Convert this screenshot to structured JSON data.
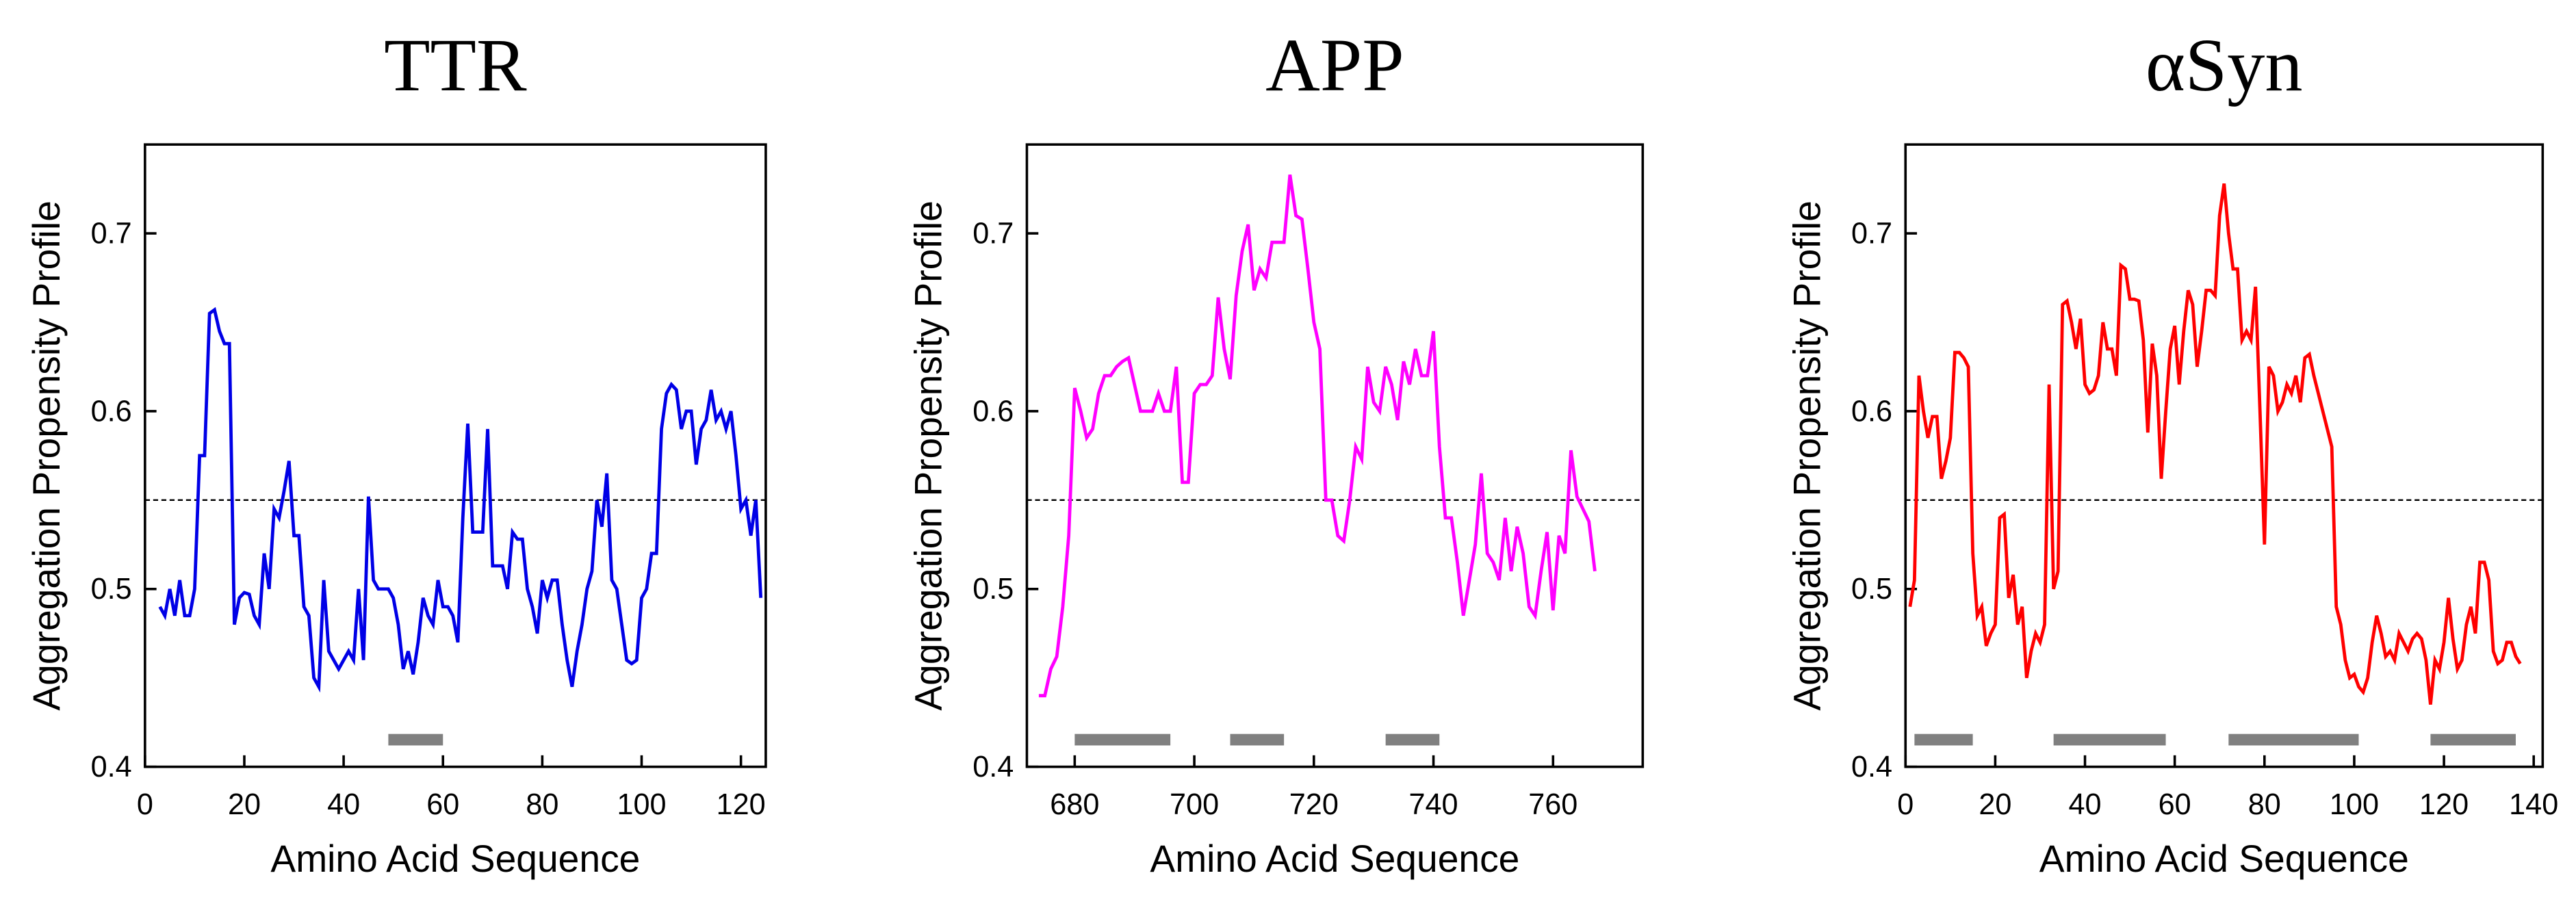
{
  "chart_data": [
    {
      "type": "line",
      "title": "TTR",
      "xlabel": "Amino Acid Sequence",
      "ylabel": "Aggregation Propensity Profile",
      "xlim": [
        0,
        125
      ],
      "xticks": [
        0,
        20,
        40,
        60,
        80,
        100,
        120
      ],
      "ylim": [
        0.4,
        0.75
      ],
      "yticks": [
        0.4,
        0.5,
        0.6,
        0.7
      ],
      "threshold": 0.55,
      "regions": [
        [
          49,
          60
        ]
      ],
      "region_color": "#808080",
      "color": "#0000e6",
      "x": [
        3,
        4,
        5,
        6,
        7,
        8,
        9,
        10,
        11,
        12,
        13,
        14,
        15,
        16,
        17,
        18,
        19,
        20,
        21,
        22,
        23,
        24,
        25,
        26,
        27,
        28,
        29,
        30,
        31,
        32,
        33,
        34,
        35,
        36,
        37,
        38,
        39,
        40,
        41,
        42,
        43,
        44,
        45,
        46,
        47,
        48,
        49,
        50,
        51,
        52,
        53,
        54,
        55,
        56,
        57,
        58,
        59,
        60,
        61,
        62,
        63,
        64,
        65,
        66,
        67,
        68,
        69,
        70,
        71,
        72,
        73,
        74,
        75,
        76,
        77,
        78,
        79,
        80,
        81,
        82,
        83,
        84,
        85,
        86,
        87,
        88,
        89,
        90,
        91,
        92,
        93,
        94,
        95,
        96,
        97,
        98,
        99,
        100,
        101,
        102,
        103,
        104,
        105,
        106,
        107,
        108,
        109,
        110,
        111,
        112,
        113,
        114,
        115,
        116,
        117,
        118,
        119,
        120,
        121,
        122,
        123,
        124
      ],
      "values": [
        0.49,
        0.485,
        0.5,
        0.485,
        0.505,
        0.485,
        0.485,
        0.5,
        0.575,
        0.575,
        0.655,
        0.657,
        0.645,
        0.638,
        0.638,
        0.48,
        0.495,
        0.498,
        0.497,
        0.485,
        0.48,
        0.52,
        0.5,
        0.545,
        0.54,
        0.555,
        0.572,
        0.53,
        0.53,
        0.49,
        0.485,
        0.45,
        0.445,
        0.505,
        0.465,
        0.46,
        0.455,
        0.46,
        0.465,
        0.46,
        0.5,
        0.46,
        0.552,
        0.505,
        0.5,
        0.5,
        0.5,
        0.495,
        0.48,
        0.455,
        0.465,
        0.452,
        0.47,
        0.495,
        0.485,
        0.48,
        0.505,
        0.49,
        0.49,
        0.485,
        0.47,
        0.54,
        0.593,
        0.532,
        0.532,
        0.532,
        0.59,
        0.513,
        0.513,
        0.513,
        0.5,
        0.532,
        0.528,
        0.528,
        0.5,
        0.49,
        0.475,
        0.505,
        0.495,
        0.505,
        0.505,
        0.48,
        0.46,
        0.445,
        0.465,
        0.48,
        0.5,
        0.51,
        0.55,
        0.535,
        0.565,
        0.505,
        0.5,
        0.48,
        0.46,
        0.458,
        0.46,
        0.495,
        0.5,
        0.52,
        0.52,
        0.59,
        0.61,
        0.615,
        0.612,
        0.59,
        0.6,
        0.6,
        0.57,
        0.59,
        0.595,
        0.612,
        0.595,
        0.6,
        0.59,
        0.6,
        0.575,
        0.545,
        0.55,
        0.53,
        0.55,
        0.495
      ]
    },
    {
      "type": "line",
      "title": "APP",
      "xlabel": "Amino Acid Sequence",
      "ylabel": "Aggregation Propensity Profile",
      "xlim": [
        672,
        775
      ],
      "xticks": [
        680,
        700,
        720,
        740,
        760
      ],
      "ylim": [
        0.4,
        0.75
      ],
      "yticks": [
        0.4,
        0.5,
        0.6,
        0.7
      ],
      "threshold": 0.55,
      "regions": [
        [
          680,
          696
        ],
        [
          706,
          715
        ],
        [
          732,
          741
        ]
      ],
      "region_color": "#808080",
      "color": "#ff00ff",
      "x": [
        674,
        675,
        676,
        677,
        678,
        679,
        680,
        681,
        682,
        683,
        684,
        685,
        686,
        687,
        688,
        689,
        690,
        691,
        692,
        693,
        694,
        695,
        696,
        697,
        698,
        699,
        700,
        701,
        702,
        703,
        704,
        705,
        706,
        707,
        708,
        709,
        710,
        711,
        712,
        713,
        714,
        715,
        716,
        717,
        718,
        719,
        720,
        721,
        722,
        723,
        724,
        725,
        726,
        727,
        728,
        729,
        730,
        731,
        732,
        733,
        734,
        735,
        736,
        737,
        738,
        739,
        740,
        741,
        742,
        743,
        744,
        745,
        746,
        747,
        748,
        749,
        750,
        751,
        752,
        753,
        754,
        755,
        756,
        757,
        758,
        759,
        760,
        761,
        762,
        763,
        764,
        765,
        766,
        767
      ],
      "values": [
        0.44,
        0.44,
        0.455,
        0.462,
        0.49,
        0.53,
        0.613,
        0.6,
        0.585,
        0.59,
        0.61,
        0.62,
        0.62,
        0.625,
        0.628,
        0.63,
        0.615,
        0.6,
        0.6,
        0.6,
        0.61,
        0.6,
        0.6,
        0.625,
        0.56,
        0.56,
        0.61,
        0.615,
        0.615,
        0.62,
        0.664,
        0.635,
        0.618,
        0.665,
        0.69,
        0.705,
        0.668,
        0.68,
        0.675,
        0.695,
        0.695,
        0.695,
        0.733,
        0.71,
        0.708,
        0.68,
        0.65,
        0.635,
        0.55,
        0.55,
        0.53,
        0.527,
        0.55,
        0.58,
        0.573,
        0.625,
        0.605,
        0.6,
        0.625,
        0.615,
        0.595,
        0.628,
        0.615,
        0.635,
        0.62,
        0.62,
        0.645,
        0.58,
        0.54,
        0.54,
        0.515,
        0.485,
        0.505,
        0.525,
        0.565,
        0.52,
        0.515,
        0.505,
        0.54,
        0.51,
        0.535,
        0.52,
        0.49,
        0.485,
        0.51,
        0.532,
        0.488,
        0.53,
        0.52,
        0.578,
        0.552,
        0.545,
        0.538,
        0.51
      ]
    },
    {
      "type": "line",
      "title": "αSyn",
      "xlabel": "Amino Acid Sequence",
      "ylabel": "Aggregation Propensity Profile",
      "xlim": [
        0,
        142
      ],
      "xticks": [
        0,
        20,
        40,
        60,
        80,
        100,
        120,
        140
      ],
      "ylim": [
        0.4,
        0.75
      ],
      "yticks": [
        0.4,
        0.5,
        0.6,
        0.7
      ],
      "threshold": 0.55,
      "regions": [
        [
          2,
          15
        ],
        [
          33,
          58
        ],
        [
          72,
          101
        ],
        [
          117,
          136
        ]
      ],
      "region_color": "#808080",
      "color": "#ff0000",
      "x": [
        1,
        2,
        3,
        4,
        5,
        6,
        7,
        8,
        9,
        10,
        11,
        12,
        13,
        14,
        15,
        16,
        17,
        18,
        19,
        20,
        21,
        22,
        23,
        24,
        25,
        26,
        27,
        28,
        29,
        30,
        31,
        32,
        33,
        34,
        35,
        36,
        37,
        38,
        39,
        40,
        41,
        42,
        43,
        44,
        45,
        46,
        47,
        48,
        49,
        50,
        51,
        52,
        53,
        54,
        55,
        56,
        57,
        58,
        59,
        60,
        61,
        62,
        63,
        64,
        65,
        66,
        67,
        68,
        69,
        70,
        71,
        72,
        73,
        74,
        75,
        76,
        77,
        78,
        79,
        80,
        81,
        82,
        83,
        84,
        85,
        86,
        87,
        88,
        89,
        90,
        91,
        92,
        93,
        94,
        95,
        96,
        97,
        98,
        99,
        100,
        101,
        102,
        103,
        104,
        105,
        106,
        107,
        108,
        109,
        110,
        111,
        112,
        113,
        114,
        115,
        116,
        117,
        118,
        119,
        120,
        121,
        122,
        123,
        124,
        125,
        126,
        127,
        128,
        129,
        130,
        131,
        132,
        133,
        134,
        135,
        136,
        137
      ],
      "values": [
        0.49,
        0.505,
        0.62,
        0.6,
        0.585,
        0.597,
        0.597,
        0.562,
        0.572,
        0.585,
        0.633,
        0.633,
        0.63,
        0.625,
        0.52,
        0.485,
        0.49,
        0.468,
        0.475,
        0.48,
        0.54,
        0.542,
        0.495,
        0.508,
        0.48,
        0.49,
        0.45,
        0.465,
        0.475,
        0.47,
        0.48,
        0.615,
        0.5,
        0.51,
        0.66,
        0.662,
        0.65,
        0.635,
        0.652,
        0.615,
        0.61,
        0.612,
        0.62,
        0.65,
        0.635,
        0.635,
        0.62,
        0.682,
        0.68,
        0.663,
        0.663,
        0.662,
        0.64,
        0.588,
        0.638,
        0.62,
        0.562,
        0.6,
        0.635,
        0.648,
        0.615,
        0.645,
        0.668,
        0.66,
        0.625,
        0.645,
        0.668,
        0.668,
        0.665,
        0.71,
        0.728,
        0.7,
        0.68,
        0.68,
        0.64,
        0.645,
        0.64,
        0.67,
        0.6,
        0.525,
        0.625,
        0.62,
        0.6,
        0.605,
        0.615,
        0.61,
        0.62,
        0.605,
        0.63,
        0.632,
        0.62,
        0.61,
        0.6,
        0.59,
        0.58,
        0.49,
        0.48,
        0.46,
        0.45,
        0.452,
        0.445,
        0.442,
        0.45,
        0.47,
        0.485,
        0.475,
        0.462,
        0.465,
        0.46,
        0.475,
        0.47,
        0.465,
        0.472,
        0.475,
        0.472,
        0.46,
        0.435,
        0.46,
        0.455,
        0.47,
        0.495,
        0.472,
        0.455,
        0.46,
        0.48,
        0.49,
        0.475,
        0.515,
        0.515,
        0.505,
        0.465,
        0.458,
        0.46,
        0.47,
        0.47,
        0.462,
        0.458
      ]
    }
  ]
}
